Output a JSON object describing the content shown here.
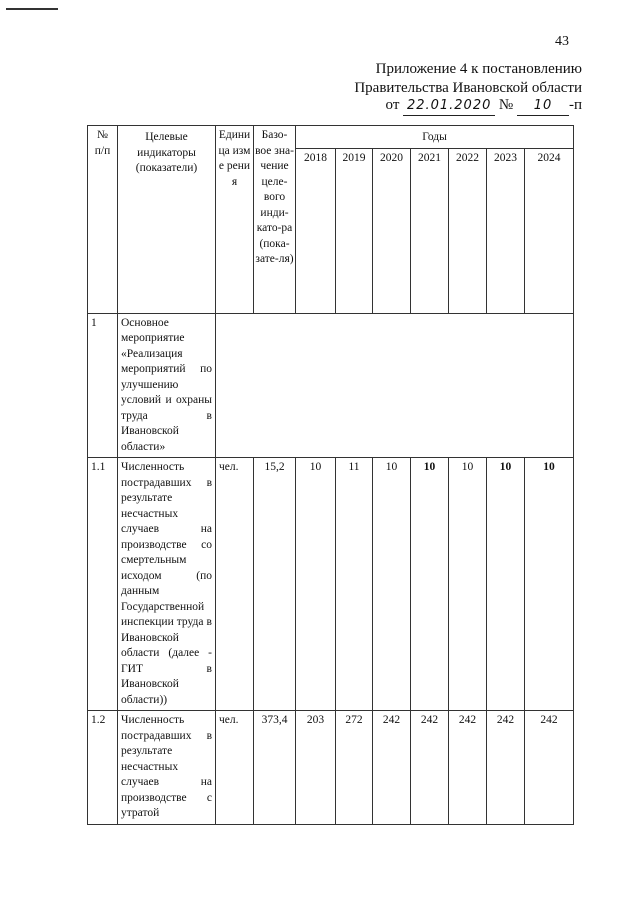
{
  "page_number": "43",
  "header": {
    "line1": "Приложение 4 к постановлению",
    "line2": "Правительства Ивановской области",
    "from_label": "от",
    "date": "22.01.2020",
    "number_label": "№",
    "number": "10",
    "suffix": "-п"
  },
  "table": {
    "columns": {
      "num": "№ п/п",
      "indicator": "Целевые индикаторы (показатели)",
      "unit": "Едини ца изме рения",
      "base": "Базо-вое зна-чение целе-вого инди-като-ра (пока-зате-ля)",
      "years_group": "Годы",
      "years": [
        "2018",
        "2019",
        "2020",
        "2021",
        "2022",
        "2023",
        "2024"
      ]
    },
    "rows": [
      {
        "num": "1",
        "indicator": "Основное мероприятие «Реализация мероприятий по улучшению условий и охраны труда в Ивановской области»"
      },
      {
        "num": "1.1",
        "indicator": "Численность пострадавших в результате несчастных случаев на производстве со смертельным исходом (по данным Государственной инспекции труда в Ивановской области (далее - ГИТ в Ивановской области))",
        "unit": "чел.",
        "base": "15,2",
        "values": [
          "10",
          "11",
          "10",
          "10",
          "10",
          "10",
          "10"
        ]
      },
      {
        "num": "1.2",
        "indicator": "Численность пострадавших в результате несчастных случаев на производстве с утратой",
        "unit": "чел.",
        "base": "373,4",
        "values": [
          "203",
          "272",
          "242",
          "242",
          "242",
          "242",
          "242"
        ]
      }
    ]
  }
}
